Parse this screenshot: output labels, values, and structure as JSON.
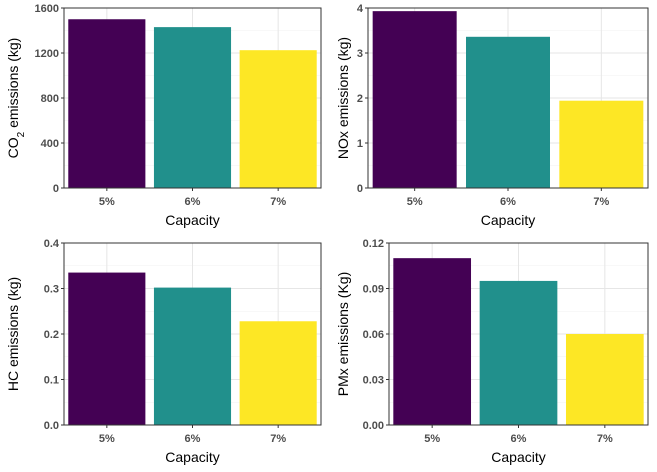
{
  "chart_data": [
    {
      "type": "bar",
      "categories": [
        "5%",
        "6%",
        "7%"
      ],
      "values": [
        1500,
        1430,
        1225
      ],
      "colors": [
        "#440154",
        "#21908C",
        "#FDE725"
      ],
      "xlabel": "Capacity",
      "ylabel_main": "CO",
      "ylabel_sub": "2",
      "ylabel_rest": " emissions (kg)",
      "ylim": [
        0,
        1600
      ],
      "yticks": [
        0,
        400,
        800,
        1200,
        1600
      ],
      "ytick_labels": [
        "0",
        "400",
        "800",
        "1200",
        "1600"
      ],
      "grid": true,
      "legend": "none"
    },
    {
      "type": "bar",
      "categories": [
        "5%",
        "6%",
        "7%"
      ],
      "values": [
        3.93,
        3.36,
        1.94
      ],
      "colors": [
        "#440154",
        "#21908C",
        "#FDE725"
      ],
      "xlabel": "Capacity",
      "ylabel": "NOx emissions (kg)",
      "ylim": [
        0,
        4
      ],
      "yticks": [
        0,
        1,
        2,
        3,
        4
      ],
      "ytick_labels": [
        "0",
        "1",
        "2",
        "3",
        "4"
      ],
      "grid": true,
      "legend": "none"
    },
    {
      "type": "bar",
      "categories": [
        "5%",
        "6%",
        "7%"
      ],
      "values": [
        0.335,
        0.302,
        0.228
      ],
      "colors": [
        "#440154",
        "#21908C",
        "#FDE725"
      ],
      "xlabel": "Capacity",
      "ylabel": "HC emissions (kg)",
      "ylim": [
        0,
        0.4
      ],
      "yticks": [
        0,
        0.1,
        0.2,
        0.3,
        0.4
      ],
      "ytick_labels": [
        "0.0",
        "0.1",
        "0.2",
        "0.3",
        "0.4"
      ],
      "grid": true,
      "legend": "none"
    },
    {
      "type": "bar",
      "categories": [
        "5%",
        "6%",
        "7%"
      ],
      "values": [
        0.11,
        0.095,
        0.06
      ],
      "colors": [
        "#440154",
        "#21908C",
        "#FDE725"
      ],
      "xlabel": "Capacity",
      "ylabel": "PMx emissions (Kg)",
      "ylim": [
        0,
        0.12
      ],
      "yticks": [
        0,
        0.03,
        0.06,
        0.09,
        0.12
      ],
      "ytick_labels": [
        "0.00",
        "0.03",
        "0.06",
        "0.09",
        "0.12"
      ],
      "grid": true,
      "legend": "none"
    }
  ]
}
